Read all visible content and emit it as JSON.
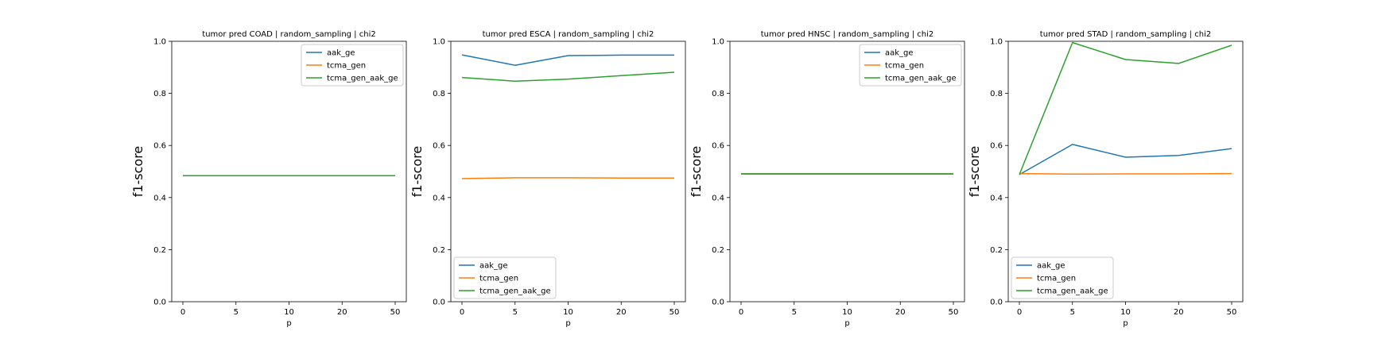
{
  "colors": {
    "aak_ge": "#1f77b4",
    "tcma_gen": "#ff7f0e",
    "tcma_gen_aak_ge": "#2ca02c"
  },
  "chart_data": [
    {
      "type": "line",
      "title": "tumor pred COAD | random_sampling | chi2",
      "xlabel": "p",
      "ylabel": "f1-score",
      "categories": [
        "0",
        "5",
        "10",
        "20",
        "50"
      ],
      "ylim": [
        0.0,
        1.0
      ],
      "yticks": [
        "0.0",
        "0.2",
        "0.4",
        "0.6",
        "0.8",
        "1.0"
      ],
      "legend_loc": "upper right",
      "series": [
        {
          "name": "aak_ge",
          "values": [
            0.484,
            0.484,
            0.484,
            0.484,
            0.484
          ]
        },
        {
          "name": "tcma_gen",
          "values": [
            0.484,
            0.484,
            0.484,
            0.484,
            0.484
          ]
        },
        {
          "name": "tcma_gen_aak_ge",
          "values": [
            0.484,
            0.484,
            0.484,
            0.484,
            0.484
          ]
        }
      ]
    },
    {
      "type": "line",
      "title": "tumor pred ESCA | random_sampling | chi2",
      "xlabel": "p",
      "ylabel": "f1-score",
      "categories": [
        "0",
        "5",
        "10",
        "20",
        "50"
      ],
      "ylim": [
        0.0,
        1.0
      ],
      "yticks": [
        "0.0",
        "0.2",
        "0.4",
        "0.6",
        "0.8",
        "1.0"
      ],
      "legend_loc": "lower left",
      "series": [
        {
          "name": "aak_ge",
          "values": [
            0.948,
            0.908,
            0.945,
            0.947,
            0.947
          ]
        },
        {
          "name": "tcma_gen",
          "values": [
            0.473,
            0.476,
            0.476,
            0.475,
            0.475
          ]
        },
        {
          "name": "tcma_gen_aak_ge",
          "values": [
            0.861,
            0.847,
            0.855,
            0.868,
            0.881
          ]
        }
      ]
    },
    {
      "type": "line",
      "title": "tumor pred HNSC | random_sampling | chi2",
      "xlabel": "p",
      "ylabel": "f1-score",
      "categories": [
        "0",
        "5",
        "10",
        "20",
        "50"
      ],
      "ylim": [
        0.0,
        1.0
      ],
      "yticks": [
        "0.0",
        "0.2",
        "0.4",
        "0.6",
        "0.8",
        "1.0"
      ],
      "legend_loc": "upper right",
      "series": [
        {
          "name": "aak_ge",
          "values": [
            0.491,
            0.491,
            0.491,
            0.491,
            0.491
          ]
        },
        {
          "name": "tcma_gen",
          "values": [
            0.491,
            0.491,
            0.491,
            0.491,
            0.491
          ]
        },
        {
          "name": "tcma_gen_aak_ge",
          "values": [
            0.491,
            0.491,
            0.491,
            0.491,
            0.491
          ]
        }
      ]
    },
    {
      "type": "line",
      "title": "tumor pred STAD | random_sampling | chi2",
      "xlabel": "p",
      "ylabel": "f1-score",
      "categories": [
        "0",
        "5",
        "10",
        "20",
        "50"
      ],
      "ylim": [
        0.0,
        1.0
      ],
      "yticks": [
        "0.0",
        "0.2",
        "0.4",
        "0.6",
        "0.8",
        "1.0"
      ],
      "legend_loc": "lower left",
      "series": [
        {
          "name": "aak_ge",
          "values": [
            0.488,
            0.604,
            0.555,
            0.562,
            0.588
          ]
        },
        {
          "name": "tcma_gen",
          "values": [
            0.492,
            0.49,
            0.491,
            0.491,
            0.492
          ]
        },
        {
          "name": "tcma_gen_aak_ge",
          "values": [
            0.488,
            0.995,
            0.93,
            0.915,
            0.985
          ]
        }
      ]
    }
  ]
}
